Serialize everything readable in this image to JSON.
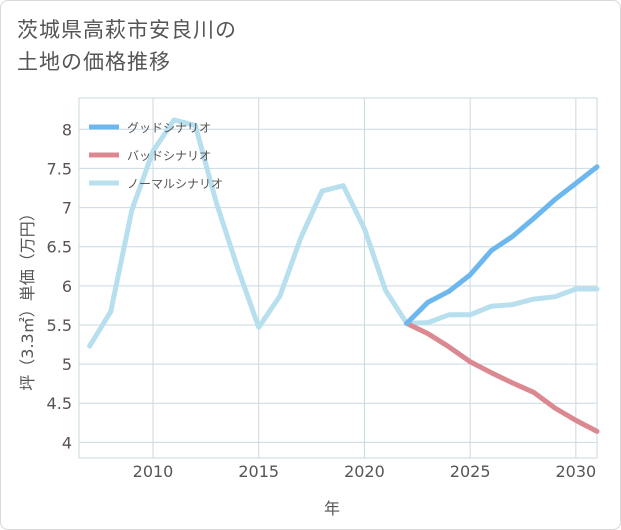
{
  "title": "茨城県高萩市安良川の\n土地の価格推移",
  "chart_data": {
    "type": "line",
    "xlabel": "年",
    "ylabel": "坪（3.3㎡）単価（万円）",
    "xlim": [
      2006.5,
      2031
    ],
    "ylim": [
      3.8,
      8.4
    ],
    "xticks": [
      2010,
      2015,
      2020,
      2025,
      2030
    ],
    "yticks": [
      4,
      4.5,
      5,
      5.5,
      6,
      6.5,
      7,
      7.5,
      8
    ],
    "grid": true,
    "legend_position": "top-left",
    "series": [
      {
        "name": "グッドシナリオ",
        "color": "#6cb8ee",
        "x": [
          2022,
          2023,
          2024,
          2025,
          2026,
          2027,
          2028,
          2029,
          2030,
          2031
        ],
        "values": [
          5.52,
          5.79,
          5.93,
          6.14,
          6.45,
          6.63,
          6.86,
          7.1,
          7.31,
          7.52
        ]
      },
      {
        "name": "バッドシナリオ",
        "color": "#dc8890",
        "x": [
          2022,
          2023,
          2024,
          2025,
          2026,
          2027,
          2028,
          2029,
          2030,
          2031
        ],
        "values": [
          5.52,
          5.39,
          5.22,
          5.03,
          4.89,
          4.76,
          4.64,
          4.44,
          4.28,
          4.14
        ]
      },
      {
        "name": "ノーマルシナリオ",
        "color": "#b7dfee",
        "x": [
          2007,
          2008,
          2009,
          2010,
          2011,
          2012,
          2013,
          2014,
          2015,
          2016,
          2017,
          2018,
          2019,
          2020,
          2021,
          2022,
          2023,
          2024,
          2025,
          2026,
          2027,
          2028,
          2029,
          2030,
          2031
        ],
        "values": [
          5.23,
          5.67,
          6.97,
          7.72,
          8.12,
          8.05,
          7.06,
          6.23,
          5.47,
          5.87,
          6.62,
          7.21,
          7.28,
          6.73,
          5.94,
          5.52,
          5.53,
          5.63,
          5.63,
          5.74,
          5.76,
          5.83,
          5.86,
          5.96,
          5.96
        ]
      }
    ]
  }
}
